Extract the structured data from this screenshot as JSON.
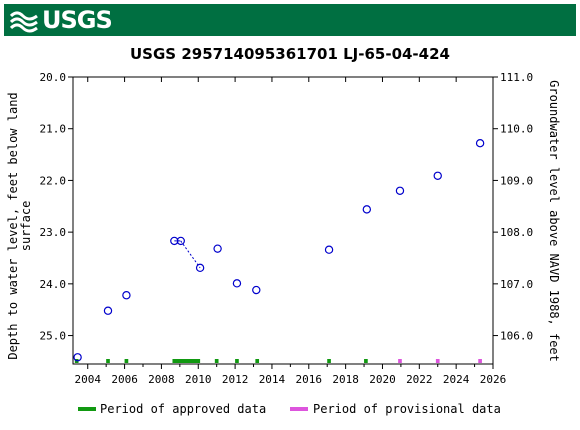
{
  "header": {
    "logo_text": "USGS",
    "bg_color": "#006f41",
    "logo_icon": "usgs-wave-icon"
  },
  "chart_data": {
    "type": "scatter",
    "title": "USGS 295714095361701 LJ-65-04-424",
    "ylabel_left": "Depth to water level, feet below land\nsurface",
    "ylabel_right": "Groundwater level above NAVD 1988, feet",
    "xlim": [
      2003.2,
      2026.0
    ],
    "ylim_left": [
      20.0,
      25.55
    ],
    "ylim_right_offset": 131.0,
    "x_ticks": [
      2004,
      2006,
      2008,
      2010,
      2012,
      2014,
      2016,
      2018,
      2020,
      2022,
      2024,
      2026
    ],
    "y_ticks_left": [
      "20.0",
      "21.0",
      "22.0",
      "23.0",
      "24.0",
      "25.0"
    ],
    "y_ticks_right": [
      "111.0",
      "110.0",
      "109.0",
      "108.0",
      "107.0",
      "106.0"
    ],
    "point_color": "#0000cc",
    "points": [
      {
        "x": 2003.45,
        "y": 25.42
      },
      {
        "x": 2005.1,
        "y": 24.52
      },
      {
        "x": 2006.1,
        "y": 24.22
      },
      {
        "x": 2008.7,
        "y": 23.17
      },
      {
        "x": 2009.05,
        "y": 23.17
      },
      {
        "x": 2010.1,
        "y": 23.69
      },
      {
        "x": 2011.05,
        "y": 23.32
      },
      {
        "x": 2012.1,
        "y": 23.99
      },
      {
        "x": 2013.15,
        "y": 24.12
      },
      {
        "x": 2017.1,
        "y": 23.34
      },
      {
        "x": 2019.15,
        "y": 22.56
      },
      {
        "x": 2020.95,
        "y": 22.2
      },
      {
        "x": 2023.0,
        "y": 21.91
      },
      {
        "x": 2025.3,
        "y": 21.28
      }
    ],
    "dotted_segments": [
      [
        3,
        4
      ],
      [
        4,
        5
      ]
    ],
    "approved_periods": [
      [
        2003.3,
        2003.5
      ],
      [
        2005.0,
        2005.2
      ],
      [
        2006.0,
        2006.2
      ],
      [
        2008.6,
        2010.1
      ],
      [
        2010.9,
        2011.1
      ],
      [
        2012.0,
        2012.2
      ],
      [
        2013.1,
        2013.3
      ],
      [
        2017.0,
        2017.2
      ],
      [
        2019.0,
        2019.2
      ]
    ],
    "provisional_periods": [
      [
        2020.85,
        2021.05
      ],
      [
        2022.9,
        2023.1
      ],
      [
        2025.2,
        2025.4
      ]
    ],
    "approved_color": "#119911",
    "provisional_color": "#dd55dd",
    "legend": {
      "approved_label": "Period of approved data",
      "provisional_label": "Period of provisional data",
      "placement": "bottom"
    }
  }
}
